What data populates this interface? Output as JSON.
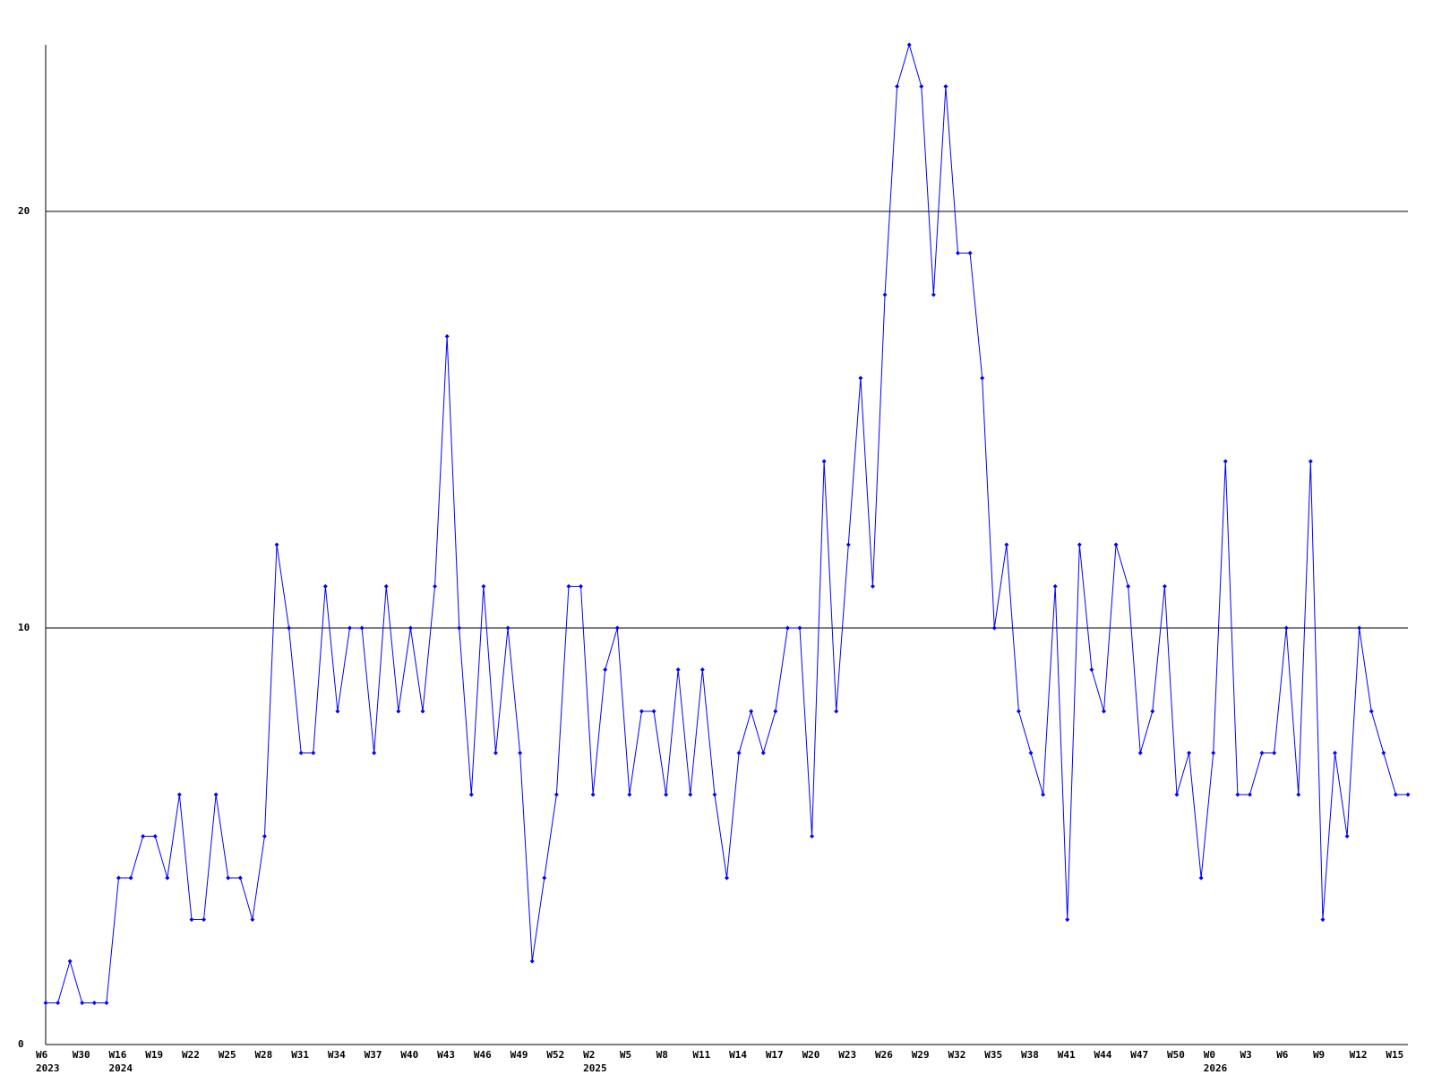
{
  "chart_data": {
    "type": "line",
    "categories": [
      "W6",
      null,
      null,
      "W30",
      null,
      null,
      "W16",
      null,
      null,
      "W19",
      null,
      null,
      "W22",
      null,
      null,
      "W25",
      null,
      null,
      "W28",
      null,
      null,
      "W31",
      null,
      null,
      "W34",
      null,
      null,
      "W37",
      null,
      null,
      "W40",
      null,
      null,
      "W43",
      null,
      null,
      "W46",
      null,
      null,
      "W49",
      null,
      null,
      "W52",
      null,
      null,
      "W2",
      null,
      null,
      "W5",
      null,
      null,
      "W8",
      null,
      null,
      "W11",
      null,
      null,
      "W14",
      null,
      null,
      "W17",
      null,
      null,
      "W20",
      null,
      null,
      "W23",
      null,
      null,
      "W26",
      null,
      null,
      "W29",
      null,
      null,
      "W32",
      null,
      null,
      "W35",
      null,
      null,
      "W38",
      null,
      null,
      "W41",
      null,
      null,
      "W44",
      null,
      null,
      "W47",
      null,
      null,
      "W50",
      null,
      null,
      "W0",
      null,
      null,
      "W3",
      null,
      null,
      "W6",
      null,
      null,
      "W9",
      null,
      null,
      "W12",
      null,
      null,
      "W15",
      null
    ],
    "year_labels": [
      "2023",
      null,
      null,
      null,
      null,
      null,
      "2024",
      null,
      null,
      null,
      null,
      null,
      null,
      null,
      null,
      null,
      null,
      null,
      null,
      null,
      null,
      null,
      null,
      null,
      null,
      null,
      null,
      null,
      null,
      null,
      null,
      null,
      null,
      null,
      null,
      null,
      null,
      null,
      null,
      null,
      null,
      null,
      null,
      null,
      null,
      "2025",
      null,
      null,
      null,
      null,
      null,
      null,
      null,
      null,
      null,
      null,
      null,
      null,
      null,
      null,
      null,
      null,
      null,
      null,
      null,
      null,
      null,
      null,
      null,
      null,
      null,
      null,
      null,
      null,
      null,
      null,
      null,
      null,
      null,
      null,
      null,
      null,
      null,
      null,
      null,
      null,
      null,
      null,
      null,
      null,
      null,
      null,
      null,
      null,
      null,
      null,
      "2026",
      null,
      null,
      null,
      null,
      null,
      null,
      null,
      null,
      null,
      null,
      null,
      null,
      null,
      null,
      null,
      null
    ],
    "values": [
      1,
      1,
      2,
      1,
      1,
      1,
      4,
      4,
      5,
      5,
      4,
      6,
      3,
      3,
      6,
      4,
      4,
      3,
      5,
      12,
      10,
      7,
      7,
      11,
      8,
      10,
      10,
      7,
      11,
      8,
      10,
      8,
      11,
      17,
      10,
      6,
      11,
      7,
      10,
      7,
      2,
      4,
      6,
      11,
      11,
      6,
      9,
      10,
      6,
      8,
      8,
      6,
      9,
      6,
      9,
      6,
      4,
      7,
      8,
      7,
      8,
      10,
      10,
      5,
      14,
      8,
      12,
      16,
      11,
      18,
      23,
      24,
      23,
      18,
      23,
      19,
      19,
      16,
      10,
      12,
      8,
      7,
      6,
      11,
      3,
      12,
      9,
      8,
      12,
      11,
      7,
      8,
      11,
      6,
      7,
      4,
      7,
      14,
      6,
      6,
      7,
      7,
      10,
      6,
      14,
      3,
      7,
      5,
      10,
      8,
      7,
      6,
      6
    ],
    "color": "#0000ff",
    "ylim": [
      0,
      24
    ],
    "yticks": [
      0,
      10,
      20
    ],
    "grid": true
  }
}
